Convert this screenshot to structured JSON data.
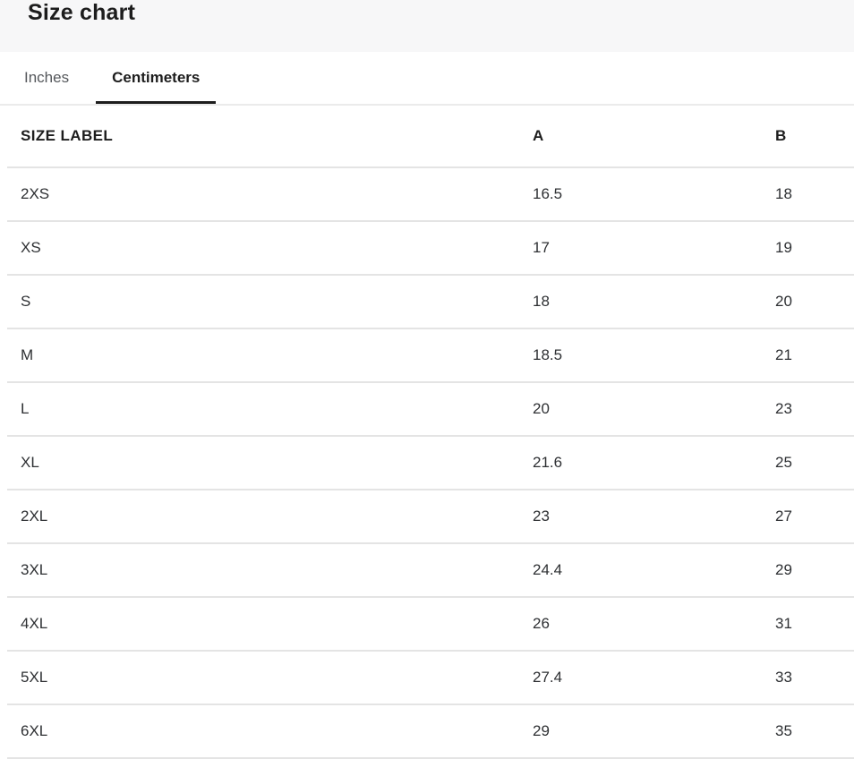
{
  "header": {
    "title": "Size chart"
  },
  "tabs": [
    {
      "label": "Inches",
      "active": false
    },
    {
      "label": "Centimeters",
      "active": true
    }
  ],
  "table": {
    "columns": [
      "SIZE LABEL",
      "A",
      "B"
    ],
    "rows": [
      {
        "size": "2XS",
        "a": "16.5",
        "b": "18"
      },
      {
        "size": "XS",
        "a": "17",
        "b": "19"
      },
      {
        "size": "S",
        "a": "18",
        "b": "20"
      },
      {
        "size": "M",
        "a": "18.5",
        "b": "21"
      },
      {
        "size": "L",
        "a": "20",
        "b": "23"
      },
      {
        "size": "XL",
        "a": "21.6",
        "b": "25"
      },
      {
        "size": "2XL",
        "a": "23",
        "b": "27"
      },
      {
        "size": "3XL",
        "a": "24.4",
        "b": "29"
      },
      {
        "size": "4XL",
        "a": "26",
        "b": "31"
      },
      {
        "size": "5XL",
        "a": "27.4",
        "b": "33"
      },
      {
        "size": "6XL",
        "a": "29",
        "b": "35"
      }
    ]
  },
  "colors": {
    "header_band_bg": "#f7f7f8",
    "active_tab_underline": "#1d1d1d",
    "divider": "#e4e4e4",
    "inactive_tab_text": "#55585c",
    "text_primary": "#1d1d1d",
    "text_body": "#2e3033"
  }
}
